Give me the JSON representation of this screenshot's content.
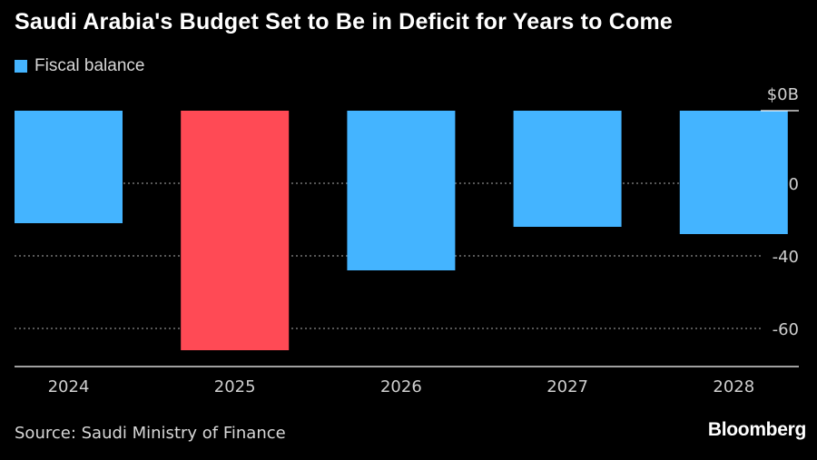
{
  "title": "Saudi Arabia's Budget Set to Be in Deficit for Years to Come",
  "legend": {
    "label": "Fiscal balance",
    "color": "#44b4ff"
  },
  "source": "Source: Saudi Ministry of Finance",
  "brand": "Bloomberg",
  "chart_data": {
    "type": "bar",
    "categories": [
      "2024",
      "2025",
      "2026",
      "2027",
      "2028"
    ],
    "series": [
      {
        "name": "Fiscal balance",
        "values": [
          -31,
          -66,
          -44,
          -32,
          -34
        ]
      }
    ],
    "bar_colors": [
      "#44b4ff",
      "#ff4a55",
      "#44b4ff",
      "#44b4ff",
      "#44b4ff"
    ],
    "y_ticks": [
      0,
      -20,
      -40,
      -60
    ],
    "y_tick_labels": [
      "$0B",
      "-20",
      "-40",
      "-60"
    ],
    "ylim": [
      -70,
      0
    ],
    "grid": true,
    "legend_position": "top-left"
  }
}
